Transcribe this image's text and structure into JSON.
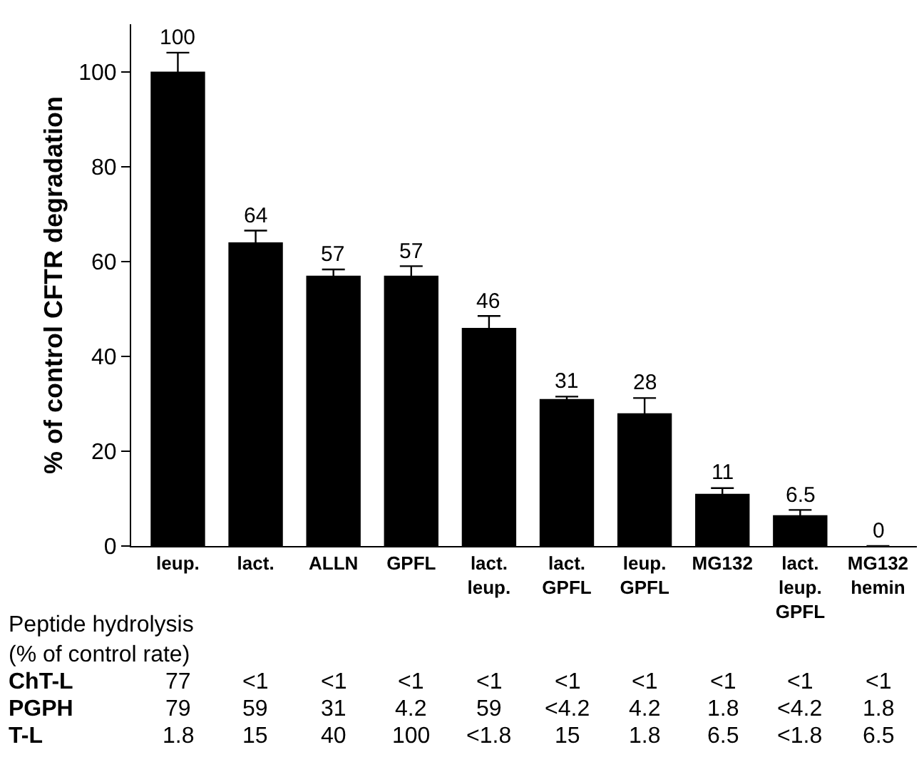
{
  "chart_data": {
    "type": "bar",
    "ylabel": "% of control CFTR degradation",
    "categories": [
      "leup.",
      "lact.",
      "ALLN",
      "GPFL",
      "lact.\nleup.",
      "lact.\nGPFL",
      "leup.\nGPFL",
      "MG132",
      "lact.\nleup.\nGPFL",
      "MG132\nhemin"
    ],
    "values": [
      100,
      64,
      57,
      57,
      46,
      31,
      28,
      11,
      6.5,
      0
    ],
    "errors": [
      4,
      2.5,
      1.3,
      2,
      2.5,
      0.5,
      3.2,
      1.2,
      1.1,
      null
    ],
    "color": "#000000",
    "ylim": [
      0,
      110
    ],
    "yticks": [
      0,
      20,
      40,
      60,
      80,
      100
    ],
    "data_labels": true,
    "annotations": [
      "Peptide hydrolysis\n(% of control rate)",
      "ChT-L",
      "77",
      "<1",
      "<1",
      "<1",
      "<1",
      "<1",
      "<1",
      "<1",
      "<1",
      "<1",
      "PGPH",
      "79",
      "59",
      "31",
      "4.2",
      "59",
      "<4.2",
      "4.2",
      "1.8",
      "<4.2",
      "1.8",
      "T-L",
      "1.8",
      "15",
      "40",
      "100",
      "<1.8",
      "15",
      "1.8",
      "6.5",
      "<1.8",
      "6.5"
    ]
  }
}
